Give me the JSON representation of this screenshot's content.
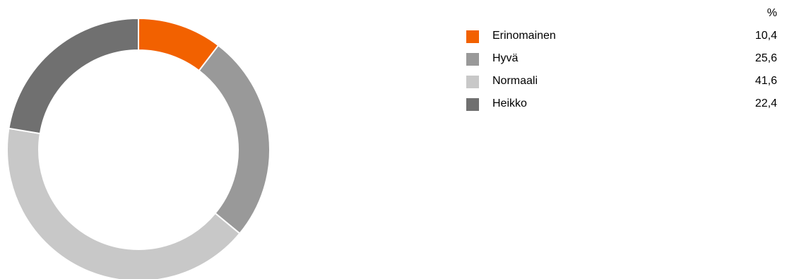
{
  "chart_data": {
    "type": "pie",
    "style": "donut",
    "unit": "%",
    "categories": [
      "Erinomainen",
      "Hyvä",
      "Normaali",
      "Heikko"
    ],
    "values": [
      "10,4",
      "25,6",
      "41,6",
      "22,4"
    ],
    "numeric_values": [
      10.4,
      25.6,
      41.6,
      22.4
    ],
    "colors": [
      "#f26100",
      "#999999",
      "#c8c8c8",
      "#707070"
    ],
    "legend_position": "right"
  }
}
